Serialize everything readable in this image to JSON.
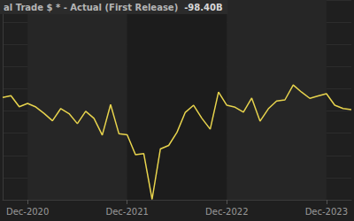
{
  "chart_data": {
    "type": "line",
    "title": "al Trade $ * - Actual (First Release)",
    "annotations": [
      "-98.40B"
    ],
    "categories": [
      null,
      null,
      null,
      "Dec-2020",
      null,
      null,
      null,
      null,
      null,
      null,
      null,
      null,
      null,
      null,
      null,
      "Dec-2021",
      null,
      null,
      null,
      null,
      null,
      null,
      null,
      null,
      null,
      null,
      null,
      "Dec-2022",
      null,
      null,
      null,
      null,
      null,
      null,
      null,
      null,
      null,
      null,
      null,
      "Dec-2023",
      null,
      null,
      null
    ],
    "values": [
      -63.9,
      -63.1,
      -68.1,
      -66.6,
      -68.2,
      -71.1,
      -74.4,
      -68.9,
      -71.2,
      -75.7,
      -70.1,
      -73.3,
      -80.9,
      -67.1,
      -80.2,
      -80.7,
      -89.7,
      -89.2,
      -109.8,
      -87.1,
      -85.5,
      -79.6,
      -70.6,
      -67.4,
      -73.3,
      -78.2,
      -61.5,
      -67.4,
      -68.3,
      -70.5,
      -64.2,
      -74.6,
      -69.0,
      -65.5,
      -65.0,
      -58.3,
      -61.5,
      -64.3,
      -63.2,
      -62.2,
      -67.4,
      -68.9,
      -69.4
    ],
    "color": "#e8d44d",
    "ylim": [
      -110,
      -20
    ],
    "yticks": [
      -110,
      -100,
      -90,
      -80,
      -70,
      -60,
      -50,
      -40,
      -30,
      -20
    ],
    "grid": true,
    "tick_labels": "x"
  }
}
